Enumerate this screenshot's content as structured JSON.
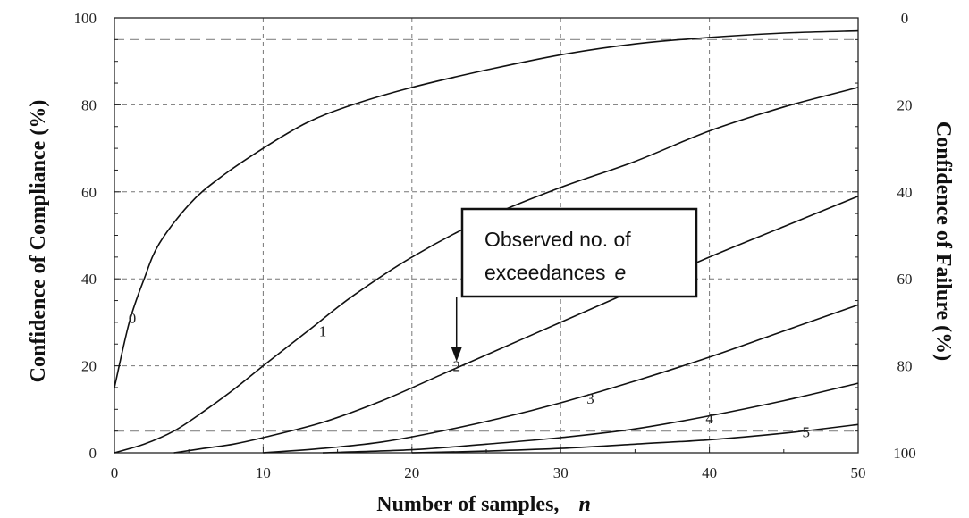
{
  "chart_data": {
    "type": "line",
    "xlabel": "Number of samples,",
    "xlabel_var": "n",
    "ylabel_left": "Confidence of Compliance (%)",
    "ylabel_right": "Confidence of Failure (%)",
    "xlim": [
      0,
      50
    ],
    "ylim": [
      0,
      100
    ],
    "x_ticks": [
      0,
      10,
      20,
      30,
      40,
      50
    ],
    "y_ticks_left": [
      0,
      20,
      40,
      60,
      80,
      100
    ],
    "y_ticks_right_values": [
      100,
      80,
      60,
      40,
      20,
      0
    ],
    "y_ticks_right_labels": [
      "0",
      "20",
      "40",
      "60",
      "80",
      "100"
    ],
    "grid": true,
    "reference_lines_y": [
      5,
      95
    ],
    "series": [
      {
        "name": "0",
        "label_at": [
          1.2,
          31
        ],
        "points": [
          [
            0,
            15
          ],
          [
            1,
            30
          ],
          [
            2,
            40
          ],
          [
            3,
            48
          ],
          [
            5,
            57
          ],
          [
            7,
            63
          ],
          [
            10,
            70
          ],
          [
            13,
            76
          ],
          [
            16,
            80
          ],
          [
            20,
            84
          ],
          [
            25,
            88
          ],
          [
            30,
            91.5
          ],
          [
            35,
            94
          ],
          [
            40,
            95.5
          ],
          [
            45,
            96.5
          ],
          [
            50,
            97
          ]
        ]
      },
      {
        "name": "1",
        "label_at": [
          14,
          28
        ],
        "points": [
          [
            0,
            0
          ],
          [
            2,
            2
          ],
          [
            4,
            5
          ],
          [
            6,
            9.5
          ],
          [
            8,
            14.5
          ],
          [
            10,
            20
          ],
          [
            13,
            28
          ],
          [
            16,
            36
          ],
          [
            20,
            45
          ],
          [
            25,
            54
          ],
          [
            30,
            61
          ],
          [
            35,
            67
          ],
          [
            40,
            74
          ],
          [
            45,
            79.5
          ],
          [
            50,
            84
          ]
        ]
      },
      {
        "name": "2",
        "label_at": [
          23,
          20
        ],
        "points": [
          [
            4,
            0
          ],
          [
            6,
            1
          ],
          [
            8,
            2
          ],
          [
            10,
            3.5
          ],
          [
            14,
            7
          ],
          [
            18,
            12
          ],
          [
            22,
            18
          ],
          [
            26,
            24
          ],
          [
            30,
            30
          ],
          [
            35,
            37.5
          ],
          [
            40,
            45
          ],
          [
            45,
            52
          ],
          [
            50,
            59
          ]
        ]
      },
      {
        "name": "3",
        "label_at": [
          32,
          12.5
        ],
        "points": [
          [
            10,
            0
          ],
          [
            14,
            1
          ],
          [
            18,
            2.5
          ],
          [
            22,
            5
          ],
          [
            26,
            8
          ],
          [
            30,
            11.5
          ],
          [
            35,
            16.5
          ],
          [
            40,
            22
          ],
          [
            45,
            28
          ],
          [
            50,
            34
          ]
        ]
      },
      {
        "name": "4",
        "label_at": [
          40,
          8
        ],
        "points": [
          [
            14,
            0
          ],
          [
            20,
            0.7
          ],
          [
            25,
            2
          ],
          [
            30,
            3.5
          ],
          [
            35,
            5.5
          ],
          [
            40,
            8.5
          ],
          [
            45,
            12
          ],
          [
            50,
            16
          ]
        ]
      },
      {
        "name": "5",
        "label_at": [
          46.5,
          4.8
        ],
        "points": [
          [
            20,
            0
          ],
          [
            25,
            0.4
          ],
          [
            30,
            1
          ],
          [
            35,
            2
          ],
          [
            40,
            3
          ],
          [
            45,
            4.5
          ],
          [
            50,
            6.5
          ]
        ]
      }
    ],
    "annotation": {
      "line1": "Observed no. of",
      "line2_text": "exceedances",
      "line2_var": "e",
      "arrow_to": [
        23,
        21
      ]
    }
  }
}
